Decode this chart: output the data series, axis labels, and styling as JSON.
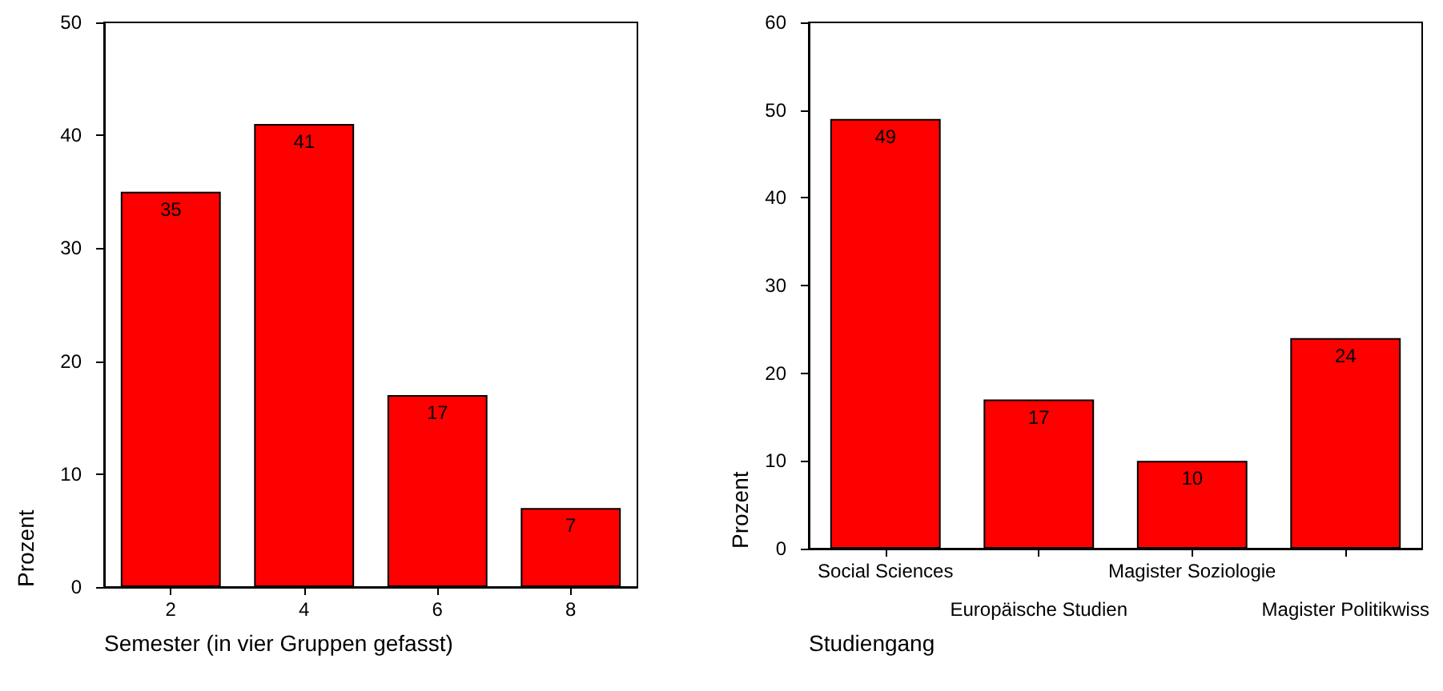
{
  "chart_data": [
    {
      "type": "bar",
      "xlabel": "Semester (in vier Gruppen gefasst)",
      "ylabel": "Prozent",
      "categories": [
        "2",
        "4",
        "6",
        "8"
      ],
      "values": [
        35,
        41,
        17,
        7
      ],
      "color": "#ff0000",
      "data_labels": true,
      "ylim": [
        0,
        50
      ],
      "yticks": [
        0,
        10,
        20,
        30,
        40,
        50
      ]
    },
    {
      "type": "bar",
      "xlabel": "Studiengang",
      "ylabel": "Prozent",
      "categories": [
        "Social Sciences",
        "Europäische Studien",
        "Magister Soziologie",
        "Magister Politikwiss"
      ],
      "values": [
        49,
        17,
        10,
        24
      ],
      "color": "#ff0000",
      "data_labels": true,
      "ylim": [
        0,
        60
      ],
      "yticks": [
        0,
        10,
        20,
        30,
        40,
        50,
        60
      ]
    }
  ]
}
